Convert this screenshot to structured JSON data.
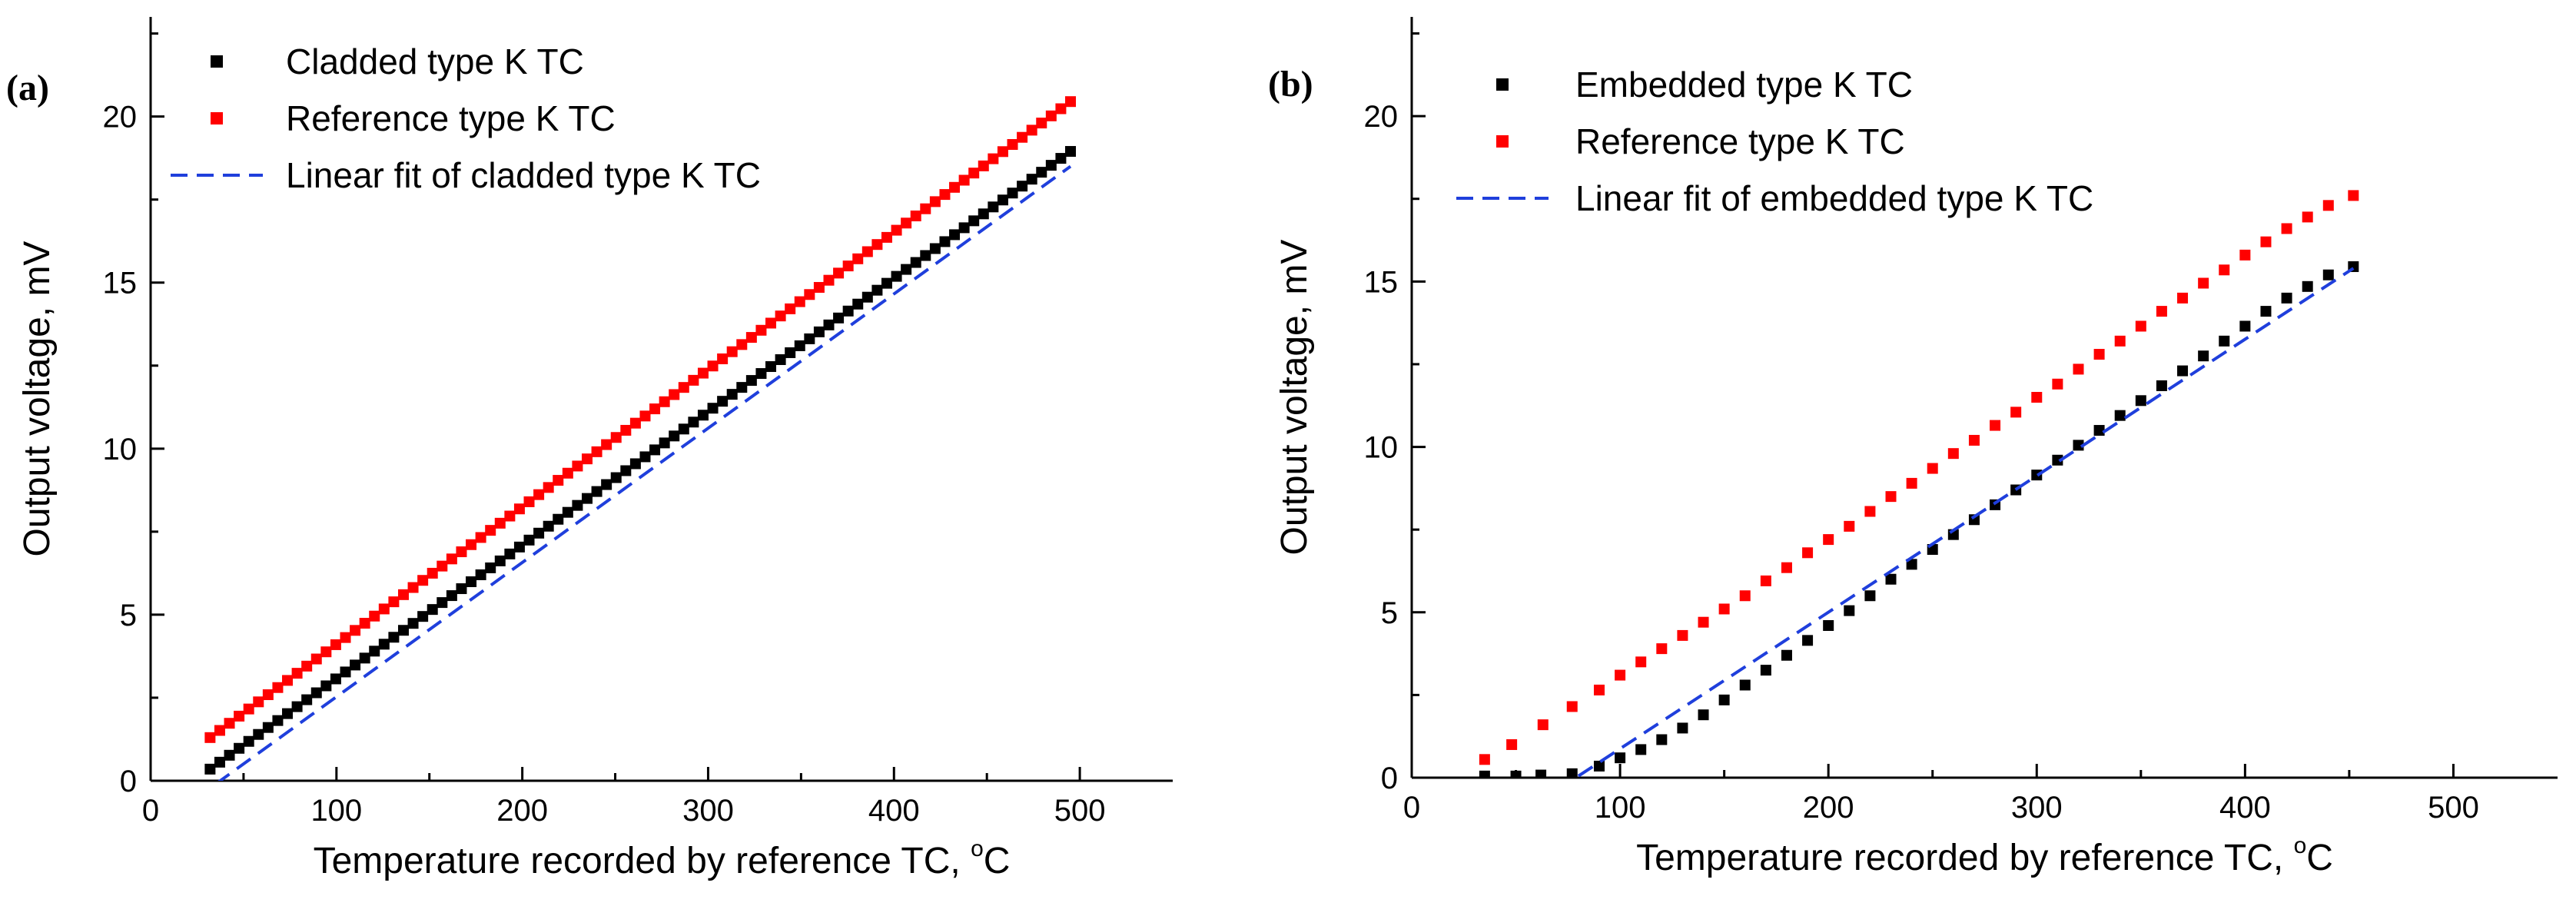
{
  "chart_data": [
    {
      "type": "scatter",
      "panel_label": "(a)",
      "xlabel_main": "Temperature recorded by reference TC, ",
      "xlabel_sup": "o",
      "xlabel_unit": "C",
      "ylabel": "Output voltage, mV",
      "xlim": [
        0,
        550
      ],
      "ylim": [
        0,
        23
      ],
      "xticks": [
        0,
        100,
        200,
        300,
        400,
        500
      ],
      "yticks": [
        0,
        5,
        10,
        15,
        20
      ],
      "legend_position": "top-left",
      "series": [
        {
          "name": "Cladded type K TC",
          "kind": "markers",
          "color": "#000000",
          "x_start": 32,
          "x_end": 495,
          "y_start": 0.35,
          "y_end": 18.95,
          "count": 90
        },
        {
          "name": "Reference type K TC",
          "kind": "markers",
          "color": "#ff0000",
          "x_start": 32,
          "x_end": 495,
          "y_start": 1.3,
          "y_end": 20.45,
          "count": 90
        },
        {
          "name": "Linear fit of cladded type K TC",
          "kind": "dashed-line",
          "color": "#1f3fdc",
          "x_start": 35,
          "x_end": 495,
          "y_start": -0.1,
          "y_end": 18.5
        }
      ]
    },
    {
      "type": "scatter",
      "panel_label": "(b)",
      "xlabel_main": "Temperature recorded by reference TC, ",
      "xlabel_sup": "o",
      "xlabel_unit": "C",
      "ylabel": "Output voltage, mV",
      "xlim": [
        0,
        550
      ],
      "ylim": [
        0,
        23
      ],
      "xticks": [
        0,
        100,
        200,
        300,
        400,
        500
      ],
      "yticks": [
        0,
        5,
        10,
        15,
        20
      ],
      "legend_position": "top-left",
      "series": [
        {
          "name": "Embedded type K TC",
          "kind": "markers",
          "color": "#000000",
          "points": [
            [
              35,
              0.05
            ],
            [
              50,
              0.05
            ],
            [
              62,
              0.08
            ],
            [
              77,
              0.12
            ],
            [
              90,
              0.35
            ],
            [
              100,
              0.6
            ],
            [
              110,
              0.85
            ],
            [
              120,
              1.15
            ],
            [
              130,
              1.5
            ],
            [
              140,
              1.9
            ],
            [
              150,
              2.35
            ],
            [
              160,
              2.8
            ],
            [
              170,
              3.25
            ],
            [
              180,
              3.7
            ],
            [
              190,
              4.15
            ],
            [
              200,
              4.6
            ],
            [
              210,
              5.05
            ],
            [
              220,
              5.5
            ],
            [
              230,
              6.0
            ],
            [
              240,
              6.45
            ],
            [
              250,
              6.9
            ],
            [
              260,
              7.35
            ],
            [
              270,
              7.8
            ],
            [
              280,
              8.25
            ],
            [
              290,
              8.7
            ],
            [
              300,
              9.15
            ],
            [
              310,
              9.6
            ],
            [
              320,
              10.05
            ],
            [
              330,
              10.5
            ],
            [
              340,
              10.95
            ],
            [
              350,
              11.4
            ],
            [
              360,
              11.85
            ],
            [
              370,
              12.3
            ],
            [
              380,
              12.75
            ],
            [
              390,
              13.2
            ],
            [
              400,
              13.65
            ],
            [
              410,
              14.1
            ],
            [
              420,
              14.5
            ],
            [
              430,
              14.85
            ],
            [
              440,
              15.2
            ],
            [
              452,
              15.45
            ]
          ]
        },
        {
          "name": "Reference type K TC",
          "kind": "markers",
          "color": "#ff0000",
          "points": [
            [
              35,
              0.55
            ],
            [
              48,
              1.0
            ],
            [
              63,
              1.6
            ],
            [
              77,
              2.15
            ],
            [
              90,
              2.65
            ],
            [
              100,
              3.1
            ],
            [
              110,
              3.5
            ],
            [
              120,
              3.9
            ],
            [
              130,
              4.3
            ],
            [
              140,
              4.7
            ],
            [
              150,
              5.1
            ],
            [
              160,
              5.5
            ],
            [
              170,
              5.95
            ],
            [
              180,
              6.35
            ],
            [
              190,
              6.8
            ],
            [
              200,
              7.2
            ],
            [
              210,
              7.6
            ],
            [
              220,
              8.05
            ],
            [
              230,
              8.5
            ],
            [
              240,
              8.9
            ],
            [
              250,
              9.35
            ],
            [
              260,
              9.8
            ],
            [
              270,
              10.2
            ],
            [
              280,
              10.65
            ],
            [
              290,
              11.05
            ],
            [
              300,
              11.5
            ],
            [
              310,
              11.9
            ],
            [
              320,
              12.35
            ],
            [
              330,
              12.8
            ],
            [
              340,
              13.2
            ],
            [
              350,
              13.65
            ],
            [
              360,
              14.1
            ],
            [
              370,
              14.5
            ],
            [
              380,
              14.95
            ],
            [
              390,
              15.35
            ],
            [
              400,
              15.8
            ],
            [
              410,
              16.2
            ],
            [
              420,
              16.6
            ],
            [
              430,
              16.95
            ],
            [
              440,
              17.3
            ],
            [
              452,
              17.6
            ]
          ]
        },
        {
          "name": "Linear fit of embedded type K TC",
          "kind": "dashed-line",
          "color": "#1f3fdc",
          "x_start": 80,
          "x_end": 452,
          "y_start": 0.05,
          "y_end": 15.4
        }
      ]
    }
  ]
}
